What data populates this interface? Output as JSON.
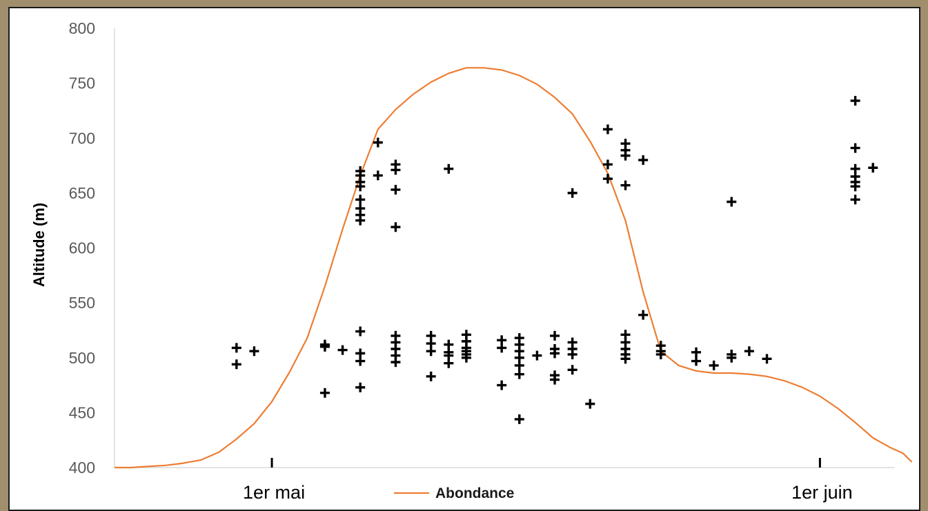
{
  "chart_data": {
    "type": "scatter",
    "title": "",
    "ylabel": "Altitude (m)",
    "xlabel": "",
    "ylim": [
      400,
      800
    ],
    "yticks": [
      400,
      450,
      500,
      550,
      600,
      650,
      700,
      750,
      800
    ],
    "x_unit": "day of year",
    "xlim": [
      112.1,
      156.2
    ],
    "xticks": [
      {
        "value": 121,
        "label": "1er mai"
      },
      {
        "value": 152,
        "label": "1er juin"
      }
    ],
    "grid": false,
    "legend": {
      "position": "bottom",
      "entries": [
        "Abondance"
      ]
    },
    "colors": {
      "line": "#ed7d31",
      "points": "#000000",
      "axis": "#d9d9d9",
      "text": "#595959"
    },
    "series": [
      {
        "name": "",
        "type": "scatter",
        "marker": "plus",
        "points": [
          [
            119.0,
            509
          ],
          [
            119.0,
            494
          ],
          [
            120.0,
            506
          ],
          [
            124.0,
            510
          ],
          [
            124.0,
            512
          ],
          [
            124.0,
            468
          ],
          [
            125.0,
            507
          ],
          [
            126.0,
            524
          ],
          [
            126.0,
            504
          ],
          [
            126.0,
            497
          ],
          [
            126.0,
            473
          ],
          [
            126.0,
            670
          ],
          [
            126.0,
            666
          ],
          [
            126.0,
            660
          ],
          [
            126.0,
            656
          ],
          [
            126.0,
            644
          ],
          [
            126.0,
            636
          ],
          [
            126.0,
            630
          ],
          [
            126.0,
            625
          ],
          [
            127.0,
            696
          ],
          [
            127.0,
            666
          ],
          [
            128.0,
            676
          ],
          [
            128.0,
            671
          ],
          [
            128.0,
            653
          ],
          [
            128.0,
            619
          ],
          [
            128.0,
            520
          ],
          [
            128.0,
            514
          ],
          [
            128.0,
            508
          ],
          [
            128.0,
            502
          ],
          [
            128.0,
            496
          ],
          [
            130.0,
            520
          ],
          [
            130.0,
            513
          ],
          [
            130.0,
            506
          ],
          [
            130.0,
            483
          ],
          [
            131.0,
            672
          ],
          [
            131.0,
            512
          ],
          [
            131.0,
            505
          ],
          [
            131.0,
            502
          ],
          [
            131.0,
            495
          ],
          [
            132.0,
            521
          ],
          [
            132.0,
            515
          ],
          [
            132.0,
            509
          ],
          [
            132.0,
            506
          ],
          [
            132.0,
            503
          ],
          [
            132.0,
            500
          ],
          [
            134.0,
            516
          ],
          [
            134.0,
            509
          ],
          [
            134.0,
            475
          ],
          [
            135.0,
            518
          ],
          [
            135.0,
            512
          ],
          [
            135.0,
            506
          ],
          [
            135.0,
            500
          ],
          [
            135.0,
            493
          ],
          [
            135.0,
            485
          ],
          [
            135.0,
            444
          ],
          [
            136.0,
            502
          ],
          [
            137.0,
            520
          ],
          [
            137.0,
            508
          ],
          [
            137.0,
            504
          ],
          [
            137.0,
            484
          ],
          [
            137.0,
            480
          ],
          [
            138.0,
            650
          ],
          [
            138.0,
            514
          ],
          [
            138.0,
            508
          ],
          [
            138.0,
            503
          ],
          [
            138.0,
            489
          ],
          [
            139.0,
            458
          ],
          [
            140.0,
            708
          ],
          [
            140.0,
            676
          ],
          [
            140.0,
            663
          ],
          [
            141.0,
            695
          ],
          [
            141.0,
            689
          ],
          [
            141.0,
            684
          ],
          [
            141.0,
            657
          ],
          [
            141.0,
            521
          ],
          [
            141.0,
            514
          ],
          [
            141.0,
            508
          ],
          [
            141.0,
            503
          ],
          [
            141.0,
            499
          ],
          [
            142.0,
            680
          ],
          [
            142.0,
            539
          ],
          [
            143.0,
            511
          ],
          [
            143.0,
            506
          ],
          [
            143.0,
            503
          ],
          [
            145.0,
            505
          ],
          [
            145.0,
            497
          ],
          [
            146.0,
            493
          ],
          [
            147.0,
            642
          ],
          [
            147.0,
            503
          ],
          [
            147.0,
            500
          ],
          [
            148.0,
            506
          ],
          [
            149.0,
            499
          ],
          [
            154.0,
            734
          ],
          [
            154.0,
            691
          ],
          [
            154.0,
            672
          ],
          [
            154.0,
            665
          ],
          [
            154.0,
            660
          ],
          [
            154.0,
            656
          ],
          [
            154.0,
            644
          ],
          [
            155.0,
            673
          ]
        ]
      },
      {
        "name": "Abondance",
        "type": "line",
        "points": [
          [
            112.1,
            400
          ],
          [
            113.0,
            400
          ],
          [
            114.0,
            401
          ],
          [
            115.0,
            402
          ],
          [
            116.0,
            404
          ],
          [
            117.0,
            407
          ],
          [
            118.0,
            414
          ],
          [
            119.0,
            426
          ],
          [
            120.0,
            440
          ],
          [
            121.0,
            460
          ],
          [
            122.0,
            487
          ],
          [
            123.0,
            518
          ],
          [
            124.0,
            565
          ],
          [
            125.0,
            617
          ],
          [
            126.0,
            666
          ],
          [
            127.0,
            708
          ],
          [
            128.0,
            726
          ],
          [
            129.0,
            740
          ],
          [
            130.0,
            751
          ],
          [
            131.0,
            759
          ],
          [
            132.0,
            764
          ],
          [
            133.0,
            764
          ],
          [
            134.0,
            762
          ],
          [
            135.0,
            757
          ],
          [
            136.0,
            749
          ],
          [
            137.0,
            737
          ],
          [
            138.0,
            722
          ],
          [
            139.0,
            697
          ],
          [
            140.0,
            668
          ],
          [
            141.0,
            625
          ],
          [
            142.0,
            560
          ],
          [
            143.0,
            506
          ],
          [
            144.0,
            493
          ],
          [
            145.0,
            488
          ],
          [
            146.0,
            486
          ],
          [
            147.0,
            486
          ],
          [
            148.0,
            485
          ],
          [
            149.0,
            483
          ],
          [
            150.0,
            479
          ],
          [
            151.0,
            473
          ],
          [
            152.0,
            465
          ],
          [
            153.0,
            454
          ],
          [
            154.0,
            441
          ],
          [
            155.0,
            427
          ],
          [
            156.0,
            418
          ],
          [
            156.7,
            413
          ],
          [
            157.2,
            405
          ]
        ]
      }
    ]
  }
}
